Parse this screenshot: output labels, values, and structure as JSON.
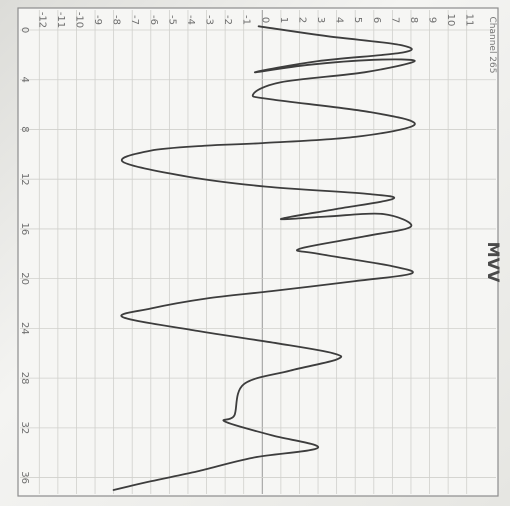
{
  "chart_data": {
    "type": "line",
    "orientation": "rotated-90-clockwise",
    "x_axis": {
      "ticks": [
        "0",
        "4",
        "8",
        "12",
        "16",
        "20",
        "24",
        "28",
        "32",
        "36"
      ],
      "range": [
        0,
        37
      ]
    },
    "y_axis": {
      "ticks": [
        "-12",
        "-11",
        "-10",
        "-9",
        "-8",
        "-7",
        "-6",
        "-5",
        "-4",
        "-3",
        "-2",
        "-1",
        "0",
        "1",
        "2",
        "3",
        "4",
        "5",
        "6",
        "7",
        "8",
        "9",
        "10",
        "11"
      ],
      "range": [
        -12.5,
        11.5
      ]
    },
    "grid": true,
    "series": [
      {
        "color": "#3d3d3d",
        "points": [
          [
            -0.3,
            -0.2
          ],
          [
            0.5,
            3.5
          ],
          [
            1.2,
            7.4
          ],
          [
            1.8,
            7.6
          ],
          [
            2.5,
            3.0
          ],
          [
            3.4,
            -0.4
          ],
          [
            2.8,
            2.5
          ],
          [
            2.4,
            6.0
          ],
          [
            2.5,
            8.2
          ],
          [
            3.4,
            5.5
          ],
          [
            4.2,
            1.0
          ],
          [
            5.2,
            -0.5
          ],
          [
            5.6,
            0.6
          ],
          [
            6.6,
            5.8
          ],
          [
            7.6,
            8.2
          ],
          [
            8.6,
            5.0
          ],
          [
            9.1,
            0.0
          ],
          [
            9.3,
            -3.0
          ],
          [
            9.7,
            -6.0
          ],
          [
            10.6,
            -7.5
          ],
          [
            11.8,
            -4.0
          ],
          [
            12.6,
            0.2
          ],
          [
            13.2,
            5.8
          ],
          [
            13.6,
            7.0
          ],
          [
            14.4,
            4.0
          ],
          [
            15.2,
            1.0
          ],
          [
            15.0,
            3.5
          ],
          [
            14.8,
            6.5
          ],
          [
            15.8,
            8.0
          ],
          [
            16.6,
            5.5
          ],
          [
            17.6,
            2.0
          ],
          [
            18.0,
            3.0
          ],
          [
            19.0,
            7.0
          ],
          [
            19.6,
            8.0
          ],
          [
            20.2,
            5.0
          ],
          [
            21.0,
            0.5
          ],
          [
            21.6,
            -3.0
          ],
          [
            22.4,
            -6.0
          ],
          [
            23.1,
            -7.5
          ],
          [
            24.2,
            -3.5
          ],
          [
            25.2,
            0.8
          ],
          [
            26.0,
            3.8
          ],
          [
            26.5,
            4.0
          ],
          [
            27.4,
            1.5
          ],
          [
            28.5,
            -1.0
          ],
          [
            31.0,
            -1.5
          ],
          [
            31.5,
            -2.0
          ],
          [
            32.6,
            0.5
          ],
          [
            33.6,
            3.0
          ],
          [
            34.4,
            -0.5
          ],
          [
            35.5,
            -3.5
          ],
          [
            36.3,
            -6.0
          ],
          [
            37.0,
            -8.0
          ]
        ]
      }
    ],
    "side_labels": {
      "top_right": "Channel 265",
      "bottom_right": "MVV"
    }
  }
}
